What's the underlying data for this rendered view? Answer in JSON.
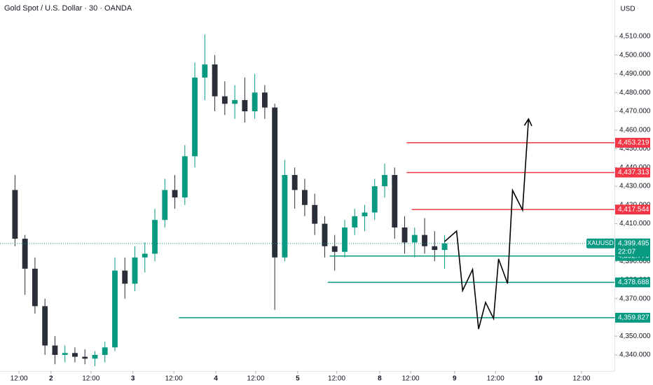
{
  "chart_data": {
    "type": "candlestick",
    "title": "Gold Spot / U.S. Dollar · 30 · OANDA",
    "currency": "USD",
    "up_color": "#089981",
    "down_color": "#2a2e39",
    "x": [
      0,
      1,
      2,
      3,
      4,
      5,
      6,
      7,
      8,
      9,
      10,
      11,
      12,
      13,
      14,
      15,
      16,
      17,
      18,
      19,
      20,
      21,
      22,
      23,
      24,
      25,
      26,
      27,
      28,
      29,
      30,
      31,
      32,
      33,
      34,
      35,
      36,
      37,
      38,
      39,
      40,
      41,
      42,
      43
    ],
    "open": [
      4428,
      4402,
      4386,
      4366,
      4345,
      4340,
      4341,
      4339,
      4338,
      4340,
      4344,
      4385,
      4378,
      4392,
      4394,
      4412,
      4428,
      4424,
      4446,
      4488,
      4495,
      4478,
      4474,
      4476,
      4470,
      4480,
      4472,
      4392,
      4436,
      4428,
      4420,
      4410,
      4398,
      4395,
      4408,
      4414,
      4416,
      4430,
      4436,
      4408,
      4400,
      4404,
      4398,
      4396
    ],
    "high": [
      4436,
      4404,
      4392,
      4370,
      4350,
      4345,
      4344,
      4343,
      4342,
      4347,
      4392,
      4392,
      4398,
      4400,
      4418,
      4434,
      4436,
      4452,
      4496,
      4511,
      4500,
      4486,
      4484,
      4488,
      4490,
      4484,
      4474,
      4444,
      4440,
      4434,
      4426,
      4414,
      4404,
      4412,
      4418,
      4420,
      4434,
      4442,
      4440,
      4414,
      4408,
      4413,
      4406,
      4404
    ],
    "low": [
      4398,
      4372,
      4362,
      4340,
      4335,
      4336,
      4336,
      4335,
      4334,
      4336,
      4342,
      4370,
      4374,
      4384,
      4390,
      4408,
      4418,
      4420,
      4440,
      4476,
      4470,
      4468,
      4466,
      4464,
      4466,
      4466,
      4364,
      4390,
      4418,
      4414,
      4404,
      4392,
      4385,
      4392,
      4404,
      4406,
      4412,
      4424,
      4402,
      4394,
      4392,
      4394,
      4390,
      4386
    ],
    "close": [
      4402,
      4386,
      4366,
      4345,
      4340,
      4341,
      4339,
      4338,
      4340,
      4344,
      4385,
      4378,
      4392,
      4394,
      4412,
      4428,
      4424,
      4446,
      4488,
      4495,
      4478,
      4474,
      4476,
      4470,
      4480,
      4472,
      4392,
      4436,
      4428,
      4420,
      4410,
      4398,
      4395,
      4408,
      4414,
      4416,
      4430,
      4436,
      4408,
      4400,
      4404,
      4398,
      4396,
      4399.495
    ],
    "xlim": [
      -1.5,
      60
    ],
    "ylim": [
      4331.4,
      4529.4
    ],
    "xticks": [
      {
        "value": 0.4,
        "label": "12:00"
      },
      {
        "value": 3.6,
        "label": "2"
      },
      {
        "value": 7.6,
        "label": "12:00"
      },
      {
        "value": 11.8,
        "label": "3"
      },
      {
        "value": 15.9,
        "label": "12:00"
      },
      {
        "value": 20.1,
        "label": "4"
      },
      {
        "value": 24.1,
        "label": "12:00"
      },
      {
        "value": 28.3,
        "label": "5"
      },
      {
        "value": 32.2,
        "label": "12:00"
      },
      {
        "value": 36.5,
        "label": "8"
      },
      {
        "value": 39.6,
        "label": "12:00"
      },
      {
        "value": 44.0,
        "label": "9"
      },
      {
        "value": 48.1,
        "label": "12:00"
      },
      {
        "value": 52.4,
        "label": "10"
      },
      {
        "value": 56.7,
        "label": "12:00"
      }
    ],
    "yticks": [
      {
        "value": 4340,
        "label": "4,340.000"
      },
      {
        "value": 4350,
        "label": "4,350.000"
      },
      {
        "value": 4360,
        "label": "4,360.000"
      },
      {
        "value": 4370,
        "label": "4,370.000"
      },
      {
        "value": 4380,
        "label": "4,380.000"
      },
      {
        "value": 4390,
        "label": "4,390.000"
      },
      {
        "value": 4400,
        "label": "4,400.000"
      },
      {
        "value": 4410,
        "label": "4,410.000"
      },
      {
        "value": 4420,
        "label": "4,420.000"
      },
      {
        "value": 4430,
        "label": "4,430.000"
      },
      {
        "value": 4440,
        "label": "4,440.000"
      },
      {
        "value": 4450,
        "label": "4,450.000"
      },
      {
        "value": 4460,
        "label": "4,460.000"
      },
      {
        "value": 4470,
        "label": "4,470.000"
      },
      {
        "value": 4480,
        "label": "4,480.000"
      },
      {
        "value": 4490,
        "label": "4,490.000"
      },
      {
        "value": 4500,
        "label": "4,500.000"
      },
      {
        "value": 4510,
        "label": "4,510.000"
      }
    ],
    "levels": [
      {
        "value": 4453.219,
        "label": "4,453.219",
        "x_start": 39.2,
        "color": "#f23645"
      },
      {
        "value": 4437.313,
        "label": "4,437.313",
        "x_start": 39.2,
        "color": "#f23645"
      },
      {
        "value": 4417.544,
        "label": "4,417.544",
        "x_start": 39.7,
        "color": "#f23645"
      },
      {
        "value": 4392.776,
        "label": "4,392.776",
        "x_start": 31.5,
        "color": "#089981"
      },
      {
        "value": 4378.688,
        "label": "4,378.688",
        "x_start": 31.3,
        "color": "#089981"
      },
      {
        "value": 4359.827,
        "label": "4,359.827",
        "x_start": 16.4,
        "color": "#089981"
      }
    ],
    "projection": {
      "x": [
        43.0,
        44.2,
        44.8,
        45.8,
        46.4,
        47.1,
        47.9,
        48.4,
        49.3,
        49.8,
        50.8,
        51.4
      ],
      "values": [
        4400.5,
        4406.1,
        4374.3,
        4385.6,
        4353.8,
        4368.0,
        4359.4,
        4391.2,
        4378.1,
        4427.8,
        4417.3,
        4465.9
      ],
      "color": "#000000"
    },
    "last_price": {
      "symbol": "XAUUSD",
      "value": 4399.495,
      "label": "4,399.495",
      "countdown": "22:07",
      "color": "#089981"
    }
  }
}
